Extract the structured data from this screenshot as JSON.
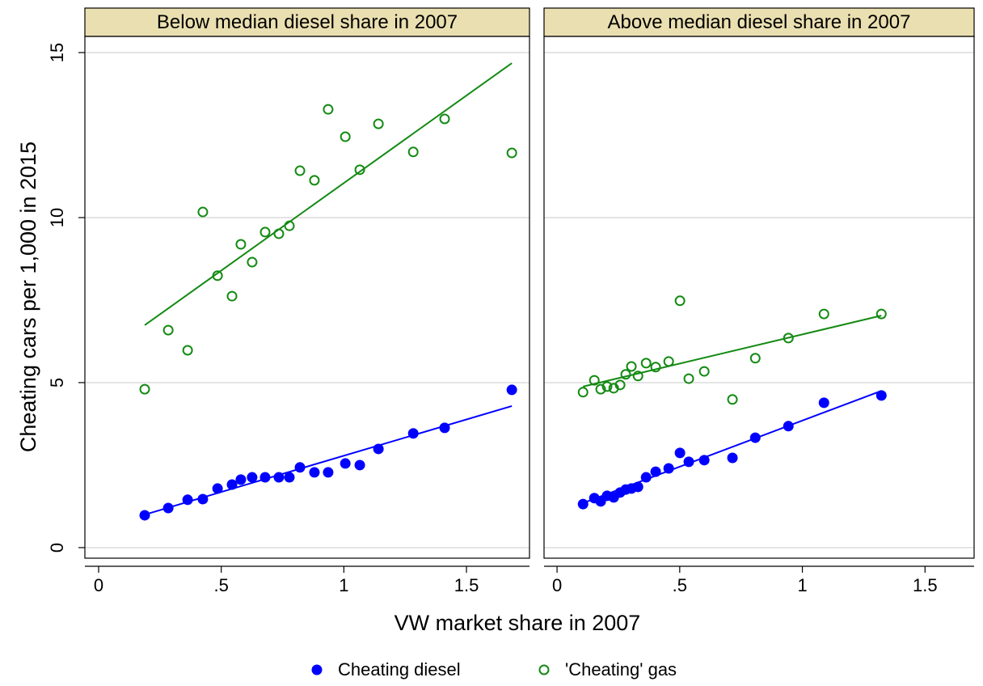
{
  "chart_data": [
    {
      "type": "scatter",
      "title": "Below median diesel share in 2007",
      "ylabel": "Cheating cars per 1,000 in 2015",
      "xlabel": "VW market share in 2007",
      "xlim": [
        -0.056,
        1.757
      ],
      "ylim": [
        -0.32,
        15.49
      ],
      "xticks": [
        0,
        {
          "value": 0.5,
          "label": ".5"
        },
        1,
        1.5
      ],
      "yticks": [
        0,
        5,
        10,
        15
      ],
      "grid": true,
      "series": [
        {
          "name": "Cheating diesel",
          "color": "#0000ff",
          "marker": "filled",
          "x": [
            0.188,
            0.284,
            0.363,
            0.425,
            0.485,
            0.544,
            0.58,
            0.626,
            0.679,
            0.735,
            0.778,
            0.821,
            0.88,
            0.936,
            1.006,
            1.065,
            1.141,
            1.283,
            1.411,
            1.685
          ],
          "values": [
            0.98,
            1.2,
            1.45,
            1.47,
            1.79,
            1.91,
            2.06,
            2.13,
            2.13,
            2.13,
            2.13,
            2.43,
            2.28,
            2.28,
            2.55,
            2.5,
            2.99,
            3.46,
            3.63,
            4.78
          ],
          "fit": {
            "x": [
              0.188,
              1.685
            ],
            "values": [
              1.0,
              4.29
            ]
          }
        },
        {
          "name": "'Cheating' gas",
          "color": "#138a13",
          "marker": "hollow",
          "x": [
            0.188,
            0.284,
            0.363,
            0.425,
            0.485,
            0.544,
            0.58,
            0.626,
            0.679,
            0.735,
            0.778,
            0.821,
            0.88,
            0.936,
            1.006,
            1.065,
            1.141,
            1.283,
            1.411,
            1.685
          ],
          "values": [
            4.8,
            6.59,
            5.98,
            10.17,
            8.24,
            7.62,
            9.19,
            8.65,
            9.56,
            9.51,
            9.75,
            11.42,
            11.13,
            13.28,
            12.45,
            11.45,
            12.84,
            11.99,
            12.99,
            11.96
          ],
          "fit": {
            "x": [
              0.188,
              1.685
            ],
            "values": [
              6.74,
              14.68
            ]
          }
        }
      ]
    },
    {
      "type": "scatter",
      "title": "Above median diesel share in 2007",
      "xlim": [
        -0.053,
        1.7
      ],
      "ylim": [
        -0.32,
        15.49
      ],
      "xticks": [
        0,
        {
          "value": 0.5,
          "label": ".5"
        },
        1,
        1.5
      ],
      "yticks": [
        0,
        5,
        10,
        15
      ],
      "grid": true,
      "series": [
        {
          "name": "Cheating diesel",
          "color": "#0000ff",
          "marker": "filled",
          "x": [
            0.106,
            0.152,
            0.178,
            0.204,
            0.231,
            0.257,
            0.28,
            0.303,
            0.33,
            0.363,
            0.402,
            0.455,
            0.501,
            0.537,
            0.6,
            0.715,
            0.808,
            0.943,
            1.088,
            1.322
          ],
          "values": [
            1.32,
            1.5,
            1.4,
            1.57,
            1.52,
            1.67,
            1.76,
            1.79,
            1.84,
            2.13,
            2.3,
            2.4,
            2.87,
            2.6,
            2.65,
            2.72,
            3.33,
            3.68,
            4.39,
            4.61
          ],
          "fit": {
            "x": [
              0.106,
              1.322
            ],
            "values": [
              1.35,
              4.75
            ]
          }
        },
        {
          "name": "'Cheating' gas",
          "color": "#138a13",
          "marker": "hollow",
          "x": [
            0.106,
            0.152,
            0.178,
            0.204,
            0.231,
            0.257,
            0.28,
            0.303,
            0.33,
            0.363,
            0.402,
            0.455,
            0.501,
            0.537,
            0.6,
            0.715,
            0.808,
            0.943,
            1.088,
            1.322
          ],
          "values": [
            4.71,
            5.07,
            4.8,
            4.88,
            4.83,
            4.93,
            5.25,
            5.49,
            5.2,
            5.59,
            5.47,
            5.64,
            7.48,
            5.12,
            5.34,
            4.49,
            5.74,
            6.35,
            7.08,
            7.08
          ],
          "fit": {
            "x": [
              0.106,
              1.322
            ],
            "values": [
              4.88,
              7.03
            ]
          }
        }
      ]
    }
  ]
}
